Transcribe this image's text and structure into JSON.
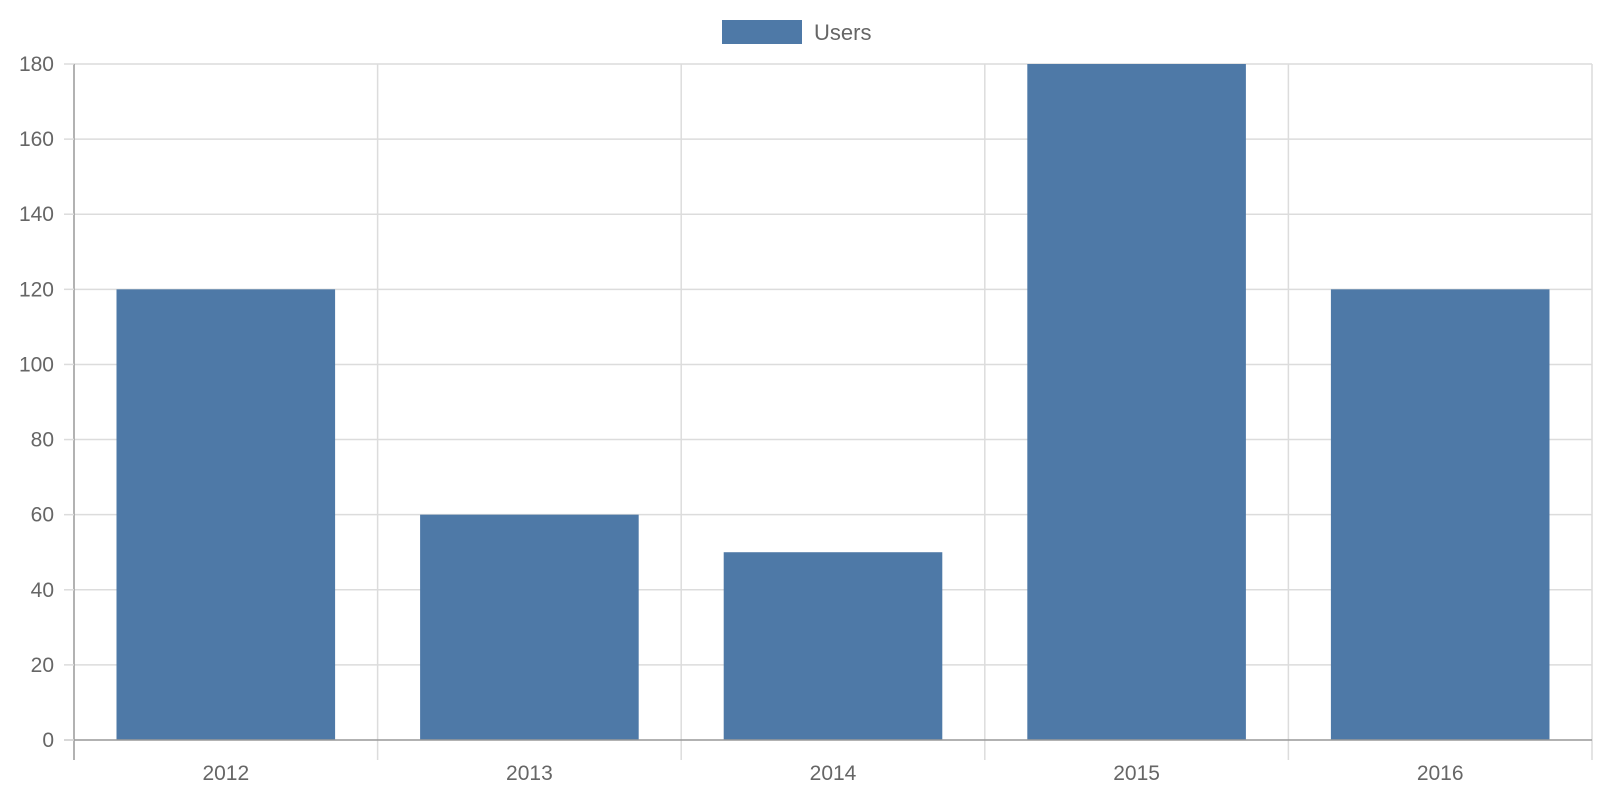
{
  "chart_data": {
    "type": "bar",
    "categories": [
      "2012",
      "2013",
      "2014",
      "2015",
      "2016"
    ],
    "series": [
      {
        "name": "Users",
        "values": [
          120,
          60,
          50,
          180,
          120
        ],
        "color": "#4e79a7"
      }
    ],
    "ylim": [
      0,
      180
    ],
    "yticks": [
      "0",
      "20",
      "40",
      "60",
      "80",
      "100",
      "120",
      "140",
      "160",
      "180"
    ],
    "title": "",
    "xlabel": "",
    "ylabel": "",
    "grid": true,
    "legend": {
      "position": "top-center",
      "entries": [
        "Users"
      ]
    },
    "colors": {
      "grid": "#dcdcdc",
      "axis": "#999999",
      "text": "#666666"
    }
  }
}
